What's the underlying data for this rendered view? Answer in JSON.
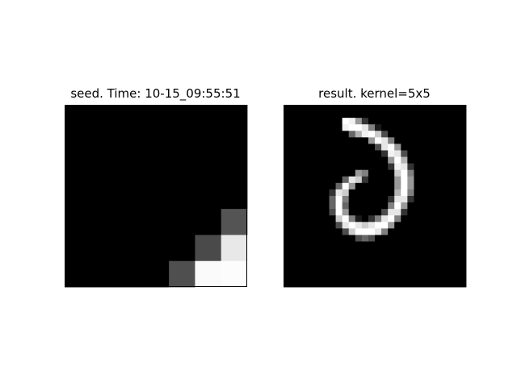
{
  "chart_data": [
    {
      "type": "heatmap",
      "title": "seed. Time: 10-15_09:55:51",
      "colormap": "gray",
      "rows": 7,
      "cols": 7,
      "values": [
        [
          0,
          0,
          0,
          0,
          0,
          0,
          0
        ],
        [
          0,
          0,
          0,
          0,
          0,
          0,
          0
        ],
        [
          0,
          0,
          0,
          0,
          0,
          0,
          0
        ],
        [
          0,
          0,
          0,
          0,
          0,
          0,
          0
        ],
        [
          0,
          0,
          0,
          0,
          0,
          0,
          0.33
        ],
        [
          0,
          0,
          0,
          0,
          0,
          0.29,
          0.91
        ],
        [
          0,
          0,
          0,
          0,
          0.31,
          0.98,
          0.99
        ]
      ]
    },
    {
      "type": "heatmap",
      "title": "result. kernel=5x5",
      "colormap": "gray",
      "rows": 28,
      "cols": 28,
      "values": [
        [
          0,
          0,
          0,
          0,
          0,
          0,
          0,
          0,
          0,
          0,
          0,
          0,
          0,
          0,
          0,
          0,
          0,
          0,
          0,
          0,
          0,
          0,
          0,
          0,
          0,
          0,
          0,
          0
        ],
        [
          0,
          0,
          0,
          0,
          0,
          0,
          0,
          0,
          0,
          0,
          0,
          0,
          0,
          0,
          0,
          0,
          0,
          0,
          0,
          0,
          0,
          0,
          0,
          0,
          0,
          0,
          0,
          0
        ],
        [
          0,
          0,
          0,
          0,
          0,
          0,
          0,
          0,
          0,
          1,
          0.95,
          0.6,
          0.2,
          0,
          0,
          0,
          0,
          0,
          0,
          0,
          0,
          0,
          0,
          0,
          0,
          0,
          0,
          0
        ],
        [
          0,
          0,
          0,
          0,
          0,
          0,
          0,
          0,
          0,
          0.95,
          1,
          1,
          0.9,
          0.5,
          0.1,
          0,
          0,
          0,
          0,
          0,
          0,
          0,
          0,
          0,
          0,
          0,
          0,
          0
        ],
        [
          0,
          0,
          0,
          0,
          0,
          0,
          0,
          0,
          0,
          0,
          0.4,
          0.7,
          0.95,
          1,
          0.8,
          0.3,
          0,
          0,
          0,
          0,
          0,
          0,
          0,
          0,
          0,
          0,
          0,
          0
        ],
        [
          0,
          0,
          0,
          0,
          0,
          0,
          0,
          0,
          0,
          0,
          0,
          0,
          0,
          0.6,
          1,
          0.9,
          0.5,
          0,
          0,
          0,
          0,
          0,
          0,
          0,
          0,
          0,
          0,
          0
        ],
        [
          0,
          0,
          0,
          0,
          0,
          0,
          0,
          0,
          0,
          0,
          0,
          0,
          0,
          0,
          0.3,
          0.9,
          1,
          0.6,
          0,
          0,
          0,
          0,
          0,
          0,
          0,
          0,
          0,
          0
        ],
        [
          0,
          0,
          0,
          0,
          0,
          0,
          0,
          0,
          0,
          0,
          0,
          0,
          0,
          0,
          0,
          0.2,
          0.95,
          0.9,
          0.3,
          0,
          0,
          0,
          0,
          0,
          0,
          0,
          0,
          0
        ],
        [
          0,
          0,
          0,
          0,
          0,
          0,
          0,
          0,
          0,
          0,
          0,
          0,
          0,
          0,
          0,
          0,
          0.6,
          1,
          0.7,
          0,
          0,
          0,
          0,
          0,
          0,
          0,
          0,
          0
        ],
        [
          0,
          0,
          0,
          0,
          0,
          0,
          0,
          0,
          0,
          0,
          0,
          0,
          0,
          0,
          0,
          0,
          0.2,
          0.95,
          0.9,
          0.2,
          0,
          0,
          0,
          0,
          0,
          0,
          0,
          0
        ],
        [
          0,
          0,
          0,
          0,
          0,
          0,
          0,
          0,
          0,
          0,
          0,
          0.6,
          0.5,
          0,
          0,
          0,
          0,
          0.8,
          1,
          0.5,
          0,
          0,
          0,
          0,
          0,
          0,
          0,
          0
        ],
        [
          0,
          0,
          0,
          0,
          0,
          0,
          0,
          0,
          0,
          0.4,
          0.9,
          0.8,
          0.2,
          0,
          0,
          0,
          0,
          0.6,
          1,
          0.6,
          0,
          0,
          0,
          0,
          0,
          0,
          0,
          0
        ],
        [
          0,
          0,
          0,
          0,
          0,
          0,
          0,
          0,
          0.4,
          1,
          0.6,
          0,
          0,
          0,
          0,
          0,
          0,
          0.6,
          1,
          0.6,
          0,
          0,
          0,
          0,
          0,
          0,
          0,
          0
        ],
        [
          0,
          0,
          0,
          0,
          0,
          0,
          0,
          0.2,
          0.9,
          0.8,
          0,
          0,
          0,
          0,
          0,
          0,
          0,
          0.7,
          1,
          0.5,
          0,
          0,
          0,
          0,
          0,
          0,
          0,
          0
        ],
        [
          0,
          0,
          0,
          0,
          0,
          0,
          0,
          0.4,
          1,
          0.5,
          0,
          0,
          0,
          0,
          0,
          0,
          0.2,
          0.9,
          0.9,
          0.2,
          0,
          0,
          0,
          0,
          0,
          0,
          0,
          0
        ],
        [
          0,
          0,
          0,
          0,
          0,
          0,
          0,
          0.4,
          1,
          0.4,
          0,
          0,
          0,
          0,
          0,
          0,
          0.5,
          1,
          0.6,
          0,
          0,
          0,
          0,
          0,
          0,
          0,
          0,
          0
        ],
        [
          0,
          0,
          0,
          0,
          0,
          0,
          0,
          0.3,
          1,
          0.6,
          0,
          0,
          0,
          0,
          0,
          0.3,
          0.9,
          0.9,
          0.2,
          0,
          0,
          0,
          0,
          0,
          0,
          0,
          0,
          0
        ],
        [
          0,
          0,
          0,
          0,
          0,
          0,
          0,
          0,
          0.8,
          1,
          0.5,
          0.1,
          0,
          0.2,
          0.5,
          0.9,
          1,
          0.5,
          0,
          0,
          0,
          0,
          0,
          0,
          0,
          0,
          0,
          0
        ],
        [
          0,
          0,
          0,
          0,
          0,
          0,
          0,
          0,
          0.3,
          0.9,
          1,
          0.9,
          0.8,
          0.9,
          1,
          1,
          0.6,
          0,
          0,
          0,
          0,
          0,
          0,
          0,
          0,
          0,
          0,
          0
        ],
        [
          0,
          0,
          0,
          0,
          0,
          0,
          0,
          0,
          0,
          0.3,
          0.8,
          1,
          1,
          1,
          0.9,
          0.5,
          0,
          0,
          0,
          0,
          0,
          0,
          0,
          0,
          0,
          0,
          0,
          0
        ],
        [
          0,
          0,
          0,
          0,
          0,
          0,
          0,
          0,
          0,
          0,
          0,
          0.3,
          0.4,
          0.3,
          0,
          0,
          0,
          0,
          0,
          0,
          0,
          0,
          0,
          0,
          0,
          0,
          0,
          0
        ],
        [
          0,
          0,
          0,
          0,
          0,
          0,
          0,
          0,
          0,
          0,
          0,
          0,
          0,
          0,
          0,
          0,
          0,
          0,
          0,
          0,
          0,
          0,
          0,
          0,
          0,
          0,
          0,
          0
        ],
        [
          0,
          0,
          0,
          0,
          0,
          0,
          0,
          0,
          0,
          0,
          0,
          0,
          0,
          0,
          0,
          0,
          0,
          0,
          0,
          0,
          0,
          0,
          0,
          0,
          0,
          0,
          0,
          0
        ],
        [
          0,
          0,
          0,
          0,
          0,
          0,
          0,
          0,
          0,
          0,
          0,
          0,
          0,
          0,
          0,
          0,
          0,
          0,
          0,
          0,
          0,
          0,
          0,
          0,
          0,
          0,
          0,
          0
        ],
        [
          0,
          0,
          0,
          0,
          0,
          0,
          0,
          0,
          0,
          0,
          0,
          0,
          0,
          0,
          0,
          0,
          0,
          0,
          0,
          0,
          0,
          0,
          0,
          0,
          0,
          0,
          0,
          0
        ],
        [
          0,
          0,
          0,
          0,
          0,
          0,
          0,
          0,
          0,
          0,
          0,
          0,
          0,
          0,
          0,
          0,
          0,
          0,
          0,
          0,
          0,
          0,
          0,
          0,
          0,
          0,
          0,
          0
        ],
        [
          0,
          0,
          0,
          0,
          0,
          0,
          0,
          0,
          0,
          0,
          0,
          0,
          0,
          0,
          0,
          0,
          0,
          0,
          0,
          0,
          0,
          0,
          0,
          0,
          0,
          0,
          0,
          0
        ],
        [
          0,
          0,
          0,
          0,
          0,
          0,
          0,
          0,
          0,
          0,
          0,
          0,
          0,
          0,
          0,
          0,
          0,
          0,
          0,
          0,
          0,
          0,
          0,
          0,
          0,
          0,
          0,
          0
        ]
      ]
    }
  ]
}
